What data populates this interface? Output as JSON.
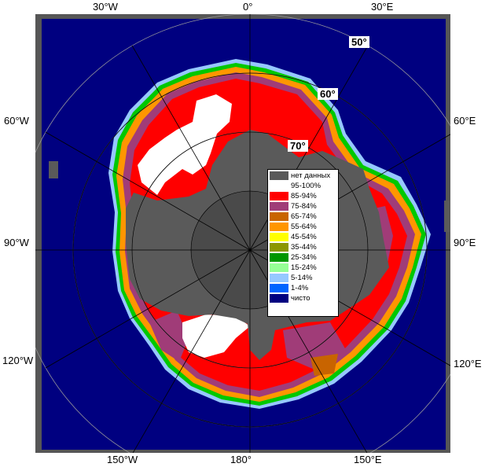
{
  "map": {
    "longitude_labels": {
      "top": [
        "30°W",
        "0°",
        "30°E"
      ],
      "left": [
        "60°W",
        "90°W",
        "120°W"
      ],
      "right": [
        "60°E",
        "90°E",
        "120°E"
      ],
      "bottom": [
        "150°W",
        "180°",
        "150°E"
      ]
    },
    "latitude_labels": [
      "50°",
      "60°",
      "70°"
    ],
    "colors": {
      "ocean": "#000080",
      "no_data": "#5a5a5a",
      "frame": "#565656",
      "graticule": "#9a9a9a"
    }
  },
  "legend": {
    "items": [
      {
        "label": "нет данных",
        "color": "#5a5a5a"
      },
      {
        "label": "95-100%",
        "color": "#ffffff"
      },
      {
        "label": "85-94%",
        "color": "#ff0000"
      },
      {
        "label": "75-84%",
        "color": "#a03c78"
      },
      {
        "label": "65-74%",
        "color": "#c86400"
      },
      {
        "label": "55-64%",
        "color": "#ff9600"
      },
      {
        "label": "45-54%",
        "color": "#ffff00"
      },
      {
        "label": "35-44%",
        "color": "#8c9600"
      },
      {
        "label": "25-34%",
        "color": "#009600"
      },
      {
        "label": "15-24%",
        "color": "#96ff96"
      },
      {
        "label": "5-14%",
        "color": "#96c8ff"
      },
      {
        "label": "1-4%",
        "color": "#0064ff"
      },
      {
        "label": "чисто",
        "color": "#000080"
      }
    ]
  }
}
